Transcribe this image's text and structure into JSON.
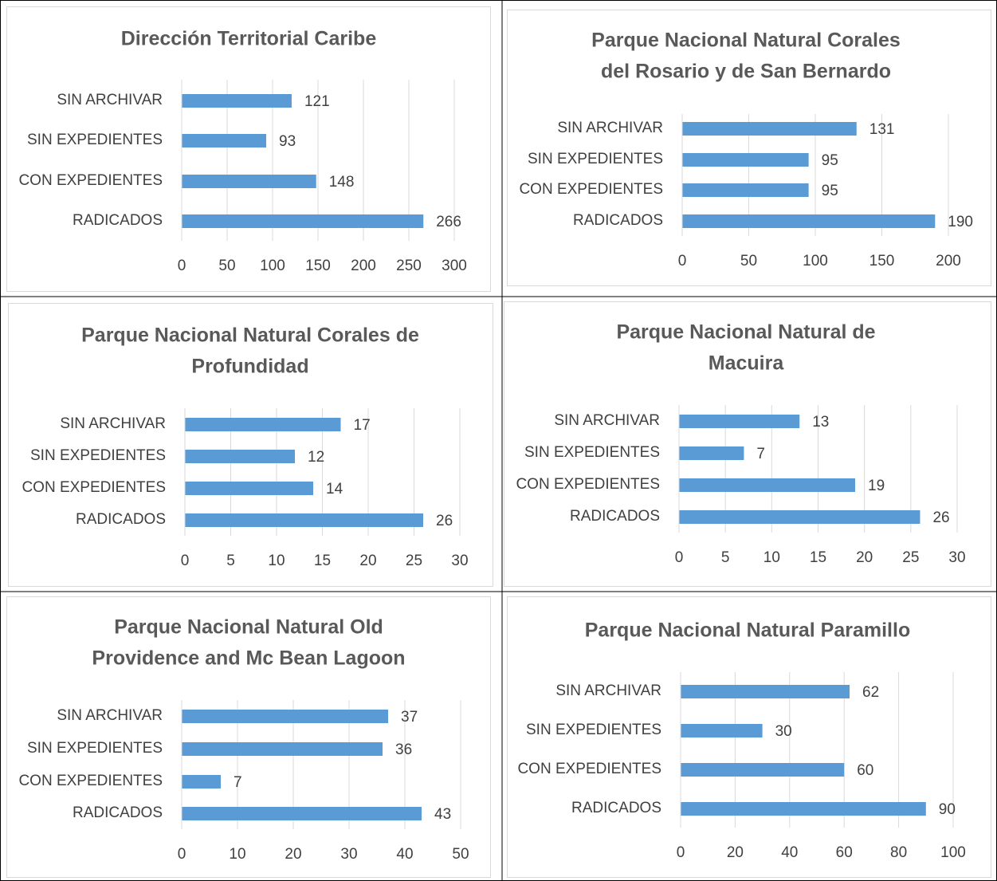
{
  "chart_data": [
    {
      "type": "bar",
      "orientation": "horizontal",
      "title": [
        "Dirección Territorial Caribe"
      ],
      "categories": [
        "SIN ARCHIVAR",
        "SIN EXPEDIENTES",
        "CON EXPEDIENTES",
        "RADICADOS"
      ],
      "values": [
        121,
        93,
        148,
        266
      ],
      "color": "#5b9bd5",
      "xlim": [
        0,
        300
      ],
      "xticks": [
        0,
        50,
        100,
        150,
        200,
        250,
        300
      ],
      "grid": true
    },
    {
      "type": "bar",
      "orientation": "horizontal",
      "title": [
        "Parque Nacional Natural Corales",
        "del Rosario y de San Bernardo"
      ],
      "categories": [
        "SIN ARCHIVAR",
        "SIN EXPEDIENTES",
        "CON EXPEDIENTES",
        "RADICADOS"
      ],
      "values": [
        131,
        95,
        95,
        190
      ],
      "color": "#5b9bd5",
      "xlim": [
        0,
        200
      ],
      "xticks": [
        0,
        50,
        100,
        150,
        200
      ],
      "grid": true
    },
    {
      "type": "bar",
      "orientation": "horizontal",
      "title": [
        "Parque Nacional Natural Corales de",
        "Profundidad"
      ],
      "categories": [
        "SIN ARCHIVAR",
        "SIN EXPEDIENTES",
        "CON EXPEDIENTES",
        "RADICADOS"
      ],
      "values": [
        17,
        12,
        14,
        26
      ],
      "color": "#5b9bd5",
      "xlim": [
        0,
        30
      ],
      "xticks": [
        0,
        5,
        10,
        15,
        20,
        25,
        30
      ],
      "grid": true
    },
    {
      "type": "bar",
      "orientation": "horizontal",
      "title": [
        "Parque Nacional Natural de",
        "Macuira"
      ],
      "categories": [
        "SIN ARCHIVAR",
        "SIN EXPEDIENTES",
        "CON EXPEDIENTES",
        "RADICADOS"
      ],
      "values": [
        13,
        7,
        19,
        26
      ],
      "color": "#5b9bd5",
      "xlim": [
        0,
        30
      ],
      "xticks": [
        0,
        5,
        10,
        15,
        20,
        25,
        30
      ],
      "grid": true
    },
    {
      "type": "bar",
      "orientation": "horizontal",
      "title": [
        "Parque Nacional Natural Old",
        "Providence and Mc Bean Lagoon"
      ],
      "categories": [
        "SIN ARCHIVAR",
        "SIN EXPEDIENTES",
        "CON EXPEDIENTES",
        "RADICADOS"
      ],
      "values": [
        37,
        36,
        7,
        43
      ],
      "color": "#5b9bd5",
      "xlim": [
        0,
        50
      ],
      "xticks": [
        0,
        10,
        20,
        30,
        40,
        50
      ],
      "grid": true
    },
    {
      "type": "bar",
      "orientation": "horizontal",
      "title": [
        "Parque Nacional Natural Paramillo"
      ],
      "categories": [
        "SIN ARCHIVAR",
        "SIN EXPEDIENTES",
        "CON EXPEDIENTES",
        "RADICADOS"
      ],
      "values": [
        62,
        30,
        60,
        90
      ],
      "color": "#5b9bd5",
      "xlim": [
        0,
        100
      ],
      "xticks": [
        0,
        20,
        40,
        60,
        80,
        100
      ],
      "grid": true
    }
  ]
}
